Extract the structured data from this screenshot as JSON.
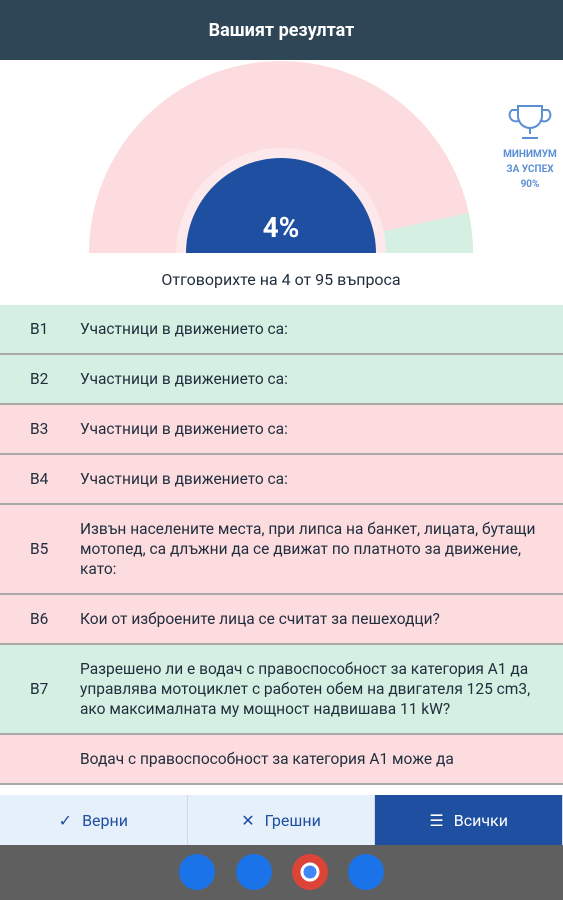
{
  "header": {
    "title": "Вашият резултат"
  },
  "score": {
    "percent": "4%",
    "min_label": [
      "МИНИМУМ",
      "ЗА УСПЕХ",
      "90%"
    ],
    "summary": "Отговорихте на 4 от 95 въпроса"
  },
  "questions": [
    {
      "id": "В1",
      "text": "Участници в движението са:",
      "color": "#d5f0e2"
    },
    {
      "id": "В2",
      "text": "Участници в движението са:",
      "color": "#d5f0e2"
    },
    {
      "id": "В3",
      "text": "Участници в движението са:",
      "color": "#fcdcdf"
    },
    {
      "id": "В4",
      "text": "Участници в движението са:",
      "color": "#fcdcdf"
    },
    {
      "id": "В5",
      "text": "Извън населените места, при липса на банкет, лицата, бутащи мотопед, са длъжни да се движат по платното за движение, като:",
      "color": "#fcdcdf"
    },
    {
      "id": "В6",
      "text": "Кои от изброените лица се считат за пешеходци?",
      "color": "#fcdcdf"
    },
    {
      "id": "В7",
      "text": "Разрешено ли е водач с правоспособност за категория А1 да управлява мотоциклет с работен обем на двигателя 125 cm3, ако максималната му мощност надвишава 11 kW?",
      "color": "#d5f0e2"
    },
    {
      "id": "",
      "text": "Водач с правоспособност за категория А1 може да",
      "color": "#fcdcdf"
    }
  ],
  "tabs": [
    "Верни",
    "Грешни",
    "Всички"
  ]
}
